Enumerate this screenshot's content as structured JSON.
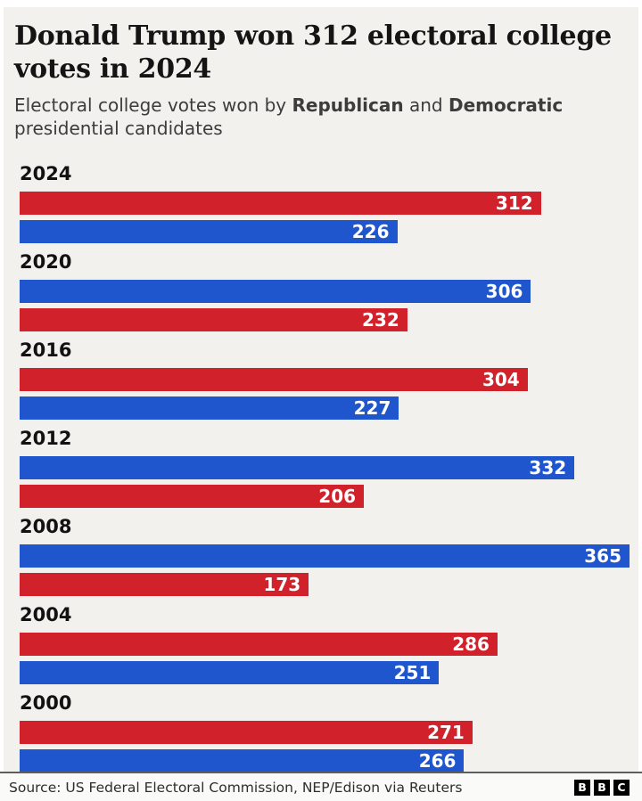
{
  "header": {
    "title": "Donald Trump won 312 electoral college votes in 2024",
    "subtitle": {
      "prefix": "Electoral college votes won by ",
      "republican": "Republican",
      "middle": " and ",
      "democratic": "Democratic",
      "suffix": " presidential candidates"
    }
  },
  "chart_data": {
    "type": "bar",
    "orientation": "horizontal",
    "title": "Donald Trump won 312 electoral college votes in 2024",
    "subtitle": "Electoral college votes won by Republican and Democratic presidential candidates",
    "xlim": [
      0,
      365
    ],
    "grid": false,
    "value_label_position": "inside-end",
    "legend": "inline-in-subtitle",
    "categories": [
      "2024",
      "2020",
      "2016",
      "2012",
      "2008",
      "2004",
      "2000"
    ],
    "series": [
      {
        "name": "Republican",
        "values": [
          312,
          232,
          304,
          206,
          173,
          286,
          271
        ]
      },
      {
        "name": "Democratic",
        "values": [
          226,
          306,
          227,
          332,
          365,
          251,
          266
        ]
      }
    ],
    "groups": [
      {
        "year": "2024",
        "bars": [
          {
            "party": "republican",
            "value": 312
          },
          {
            "party": "democratic",
            "value": 226
          }
        ]
      },
      {
        "year": "2020",
        "bars": [
          {
            "party": "democratic",
            "value": 306
          },
          {
            "party": "republican",
            "value": 232
          }
        ]
      },
      {
        "year": "2016",
        "bars": [
          {
            "party": "republican",
            "value": 304
          },
          {
            "party": "democratic",
            "value": 227
          }
        ]
      },
      {
        "year": "2012",
        "bars": [
          {
            "party": "democratic",
            "value": 332
          },
          {
            "party": "republican",
            "value": 206
          }
        ]
      },
      {
        "year": "2008",
        "bars": [
          {
            "party": "democratic",
            "value": 365
          },
          {
            "party": "republican",
            "value": 173
          }
        ]
      },
      {
        "year": "2004",
        "bars": [
          {
            "party": "republican",
            "value": 286
          },
          {
            "party": "democratic",
            "value": 251
          }
        ]
      },
      {
        "year": "2000",
        "bars": [
          {
            "party": "republican",
            "value": 271
          },
          {
            "party": "democratic",
            "value": 266
          }
        ]
      }
    ],
    "colors": {
      "republican": "#d1212b",
      "democratic": "#1f56cd",
      "background": "#f2f1ee",
      "value_text": "#ffffff"
    }
  },
  "footer": {
    "source": "Source: US Federal Electoral Commission, NEP/Edison via Reuters",
    "logo_blocks": [
      "B",
      "B",
      "C"
    ]
  }
}
